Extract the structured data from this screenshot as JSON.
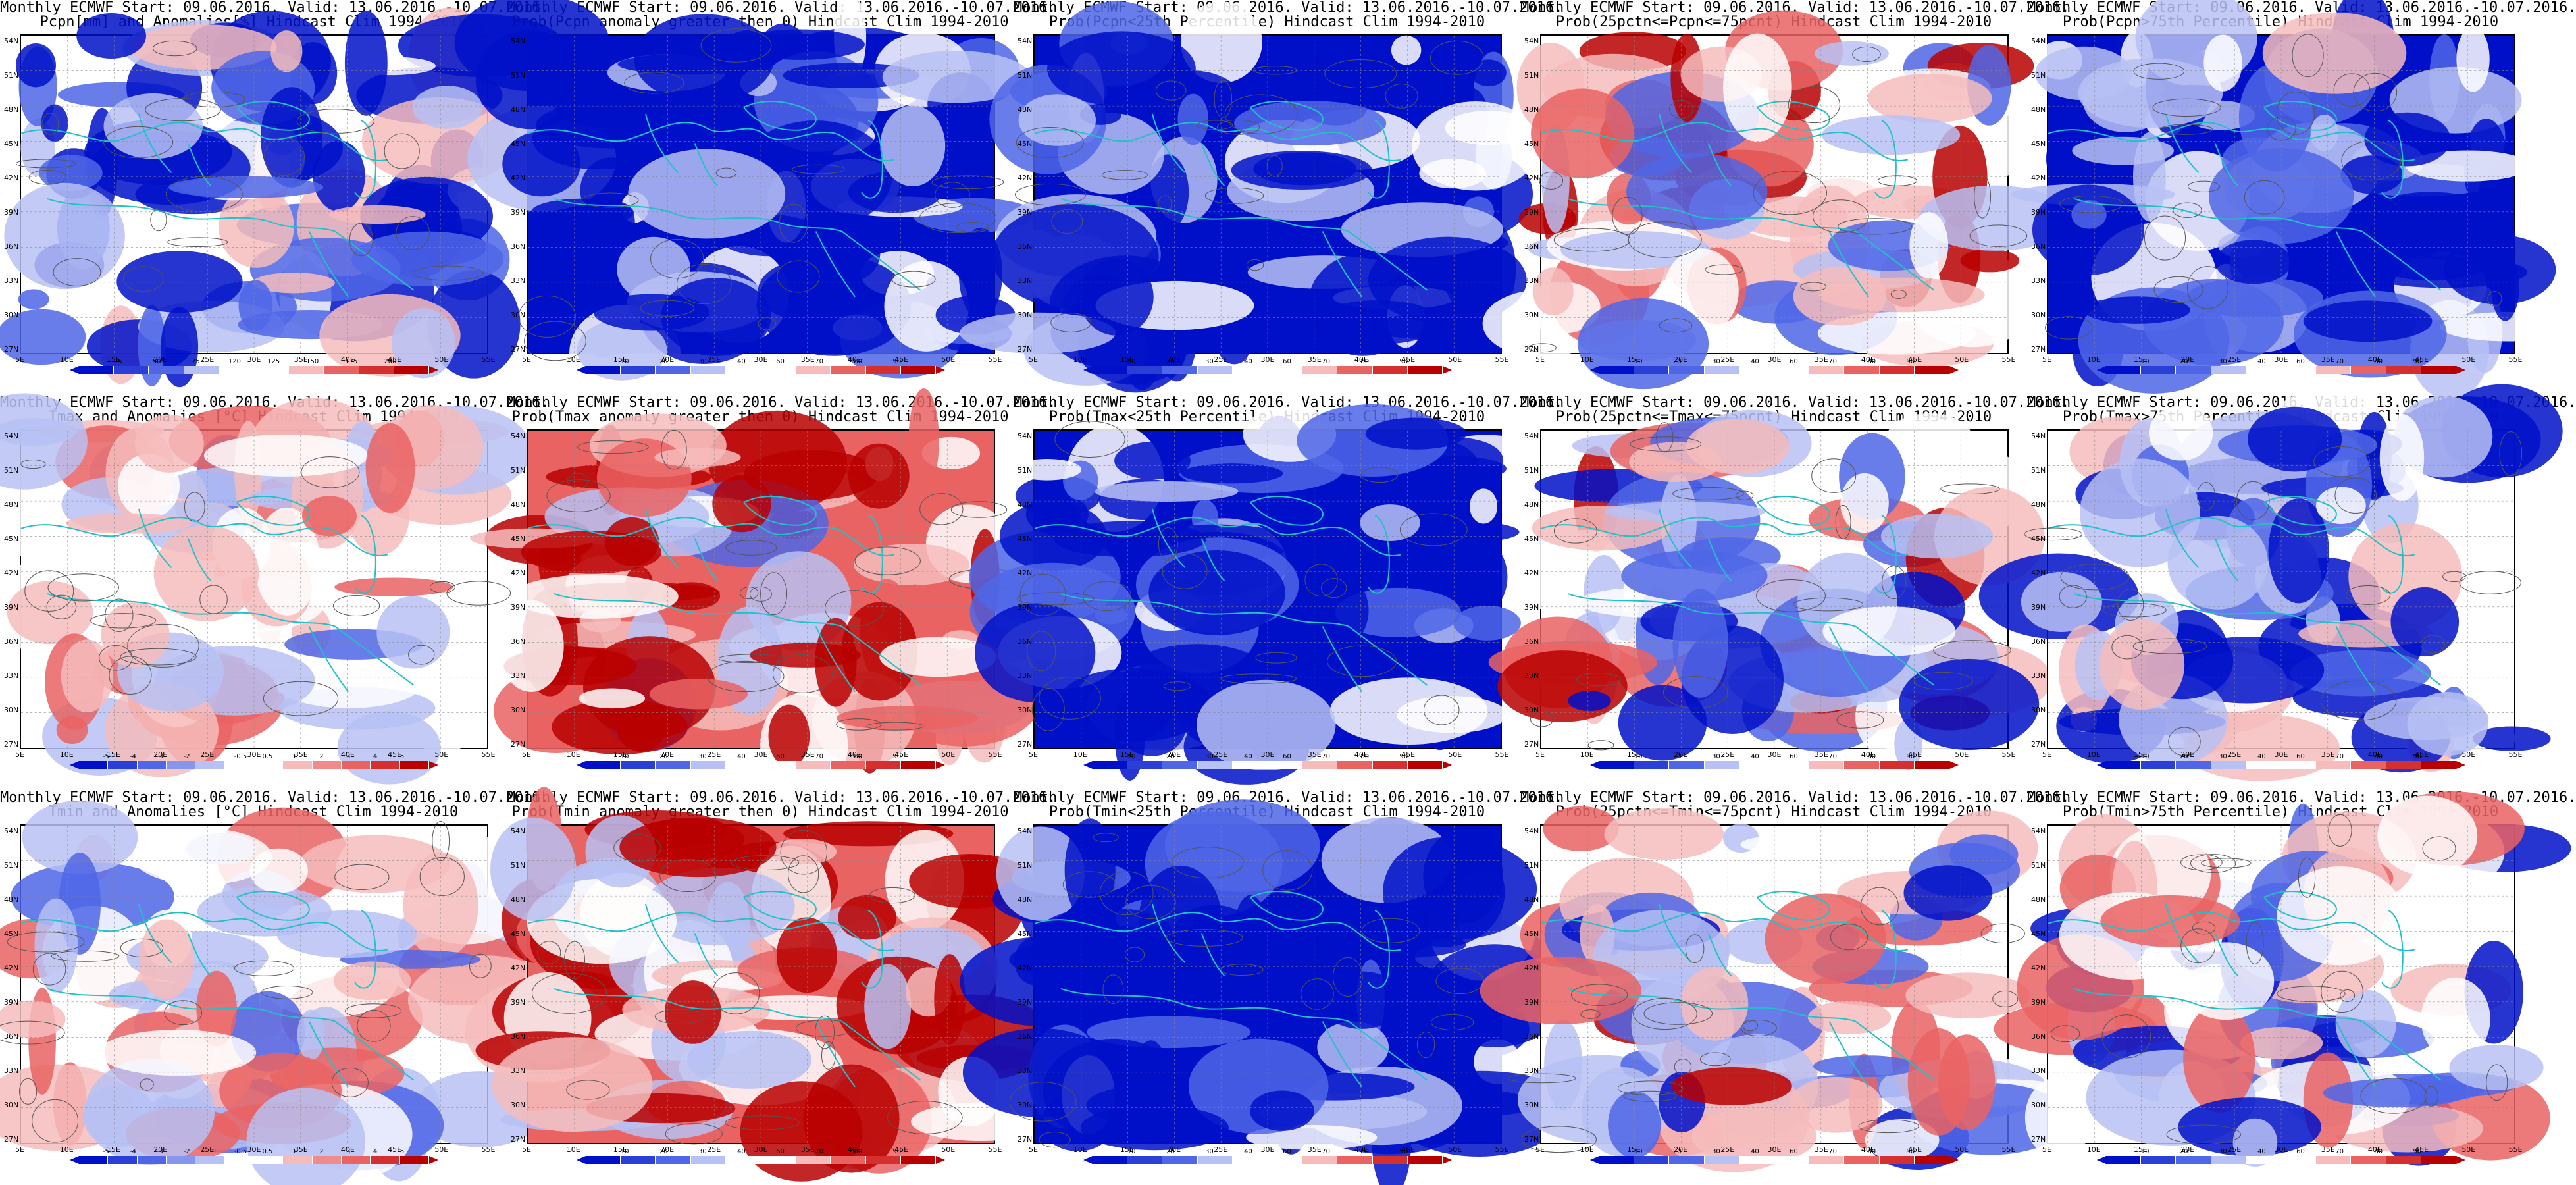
{
  "panels": [
    {
      "id": "p-pcpn-anom",
      "title1": "Monthly ECMWF Start: 09.06.2016. Valid: 13.06.2016.-10.07.2016.",
      "title2": "Pcpn[mm] and Anomalies[%] Hindcast Clim 1994-2010",
      "kind": "anom-pcpn",
      "cbar_labels": [
        "25",
        "50",
        "75",
        "120",
        "125",
        "150",
        "175",
        "200"
      ]
    },
    {
      "id": "p-pcpn-gt0",
      "title1": "Monthly ECMWF Start: 09.06.2016. Valid: 13.06.2016.-10.07.2016.",
      "title2": "Prob(Pcpn anomaly greater then 0) Hindcast Clim 1994-2010",
      "kind": "prob",
      "cbar_labels": [
        "10",
        "20",
        "30",
        "40",
        "60",
        "70",
        "80",
        "90"
      ]
    },
    {
      "id": "p-pcpn-lt25",
      "title1": "Monthly ECMWF Start: 09.06.2016. Valid: 13.06.2016.-10.07.2016.",
      "title2": "Prob(Pcpn<25th Percentile) Hindcast Clim 1994-2010",
      "kind": "prob",
      "cbar_labels": [
        "10",
        "20",
        "30",
        "40",
        "60",
        "70",
        "80",
        "90"
      ]
    },
    {
      "id": "p-pcpn-mid",
      "title1": "Monthly ECMWF Start: 09.06.2016. Valid: 13.06.2016.-10.07.2016.",
      "title2": "Prob(25pctn<=Pcpn<=75pcnt) Hindcast Clim 1994-2010",
      "kind": "prob",
      "cbar_labels": [
        "10",
        "20",
        "30",
        "40",
        "60",
        "70",
        "80",
        "90"
      ]
    },
    {
      "id": "p-pcpn-gt75",
      "title1": "Monthly ECMWF Start: 09.06.2016. Valid: 13.06.2016.-10.07.2016.",
      "title2": "Prob(Pcpn>75th Percentile) Hindcast Clim 1994-2010",
      "kind": "prob",
      "cbar_labels": [
        "10",
        "20",
        "30",
        "40",
        "60",
        "70",
        "80",
        "90"
      ]
    },
    {
      "id": "p-tmax-anom",
      "title1": "Monthly ECMWF Start: 09.06.2016. Valid: 13.06.2016.-10.07.2016.",
      "title2": "Tmax and Anomalies [°C] Hindcast Clim 1994-2010",
      "kind": "anom-temp",
      "cbar_labels": [
        "-5",
        "-4",
        "-3",
        "-2",
        "-1",
        "-0.5",
        "0.5",
        "1",
        "2",
        "3",
        "4",
        "5"
      ]
    },
    {
      "id": "p-tmax-gt0",
      "title1": "Monthly ECMWF Start: 09.06.2016. Valid: 13.06.2016.-10.07.2016.",
      "title2": "Prob(Tmax anomaly greater then 0) Hindcast Clim 1994-2010",
      "kind": "prob",
      "cbar_labels": [
        "10",
        "20",
        "30",
        "40",
        "60",
        "70",
        "80",
        "90"
      ]
    },
    {
      "id": "p-tmax-lt25",
      "title1": "Monthly ECMWF Start: 09.06.2016. Valid: 13.06.2016.-10.07.2016.",
      "title2": "Prob(Tmax<25th Percentile) Hindcast Clim 1994-2010",
      "kind": "prob",
      "cbar_labels": [
        "10",
        "20",
        "30",
        "40",
        "60",
        "70",
        "80",
        "90"
      ]
    },
    {
      "id": "p-tmax-mid",
      "title1": "Monthly ECMWF Start: 09.06.2016. Valid: 13.06.2016.-10.07.2016.",
      "title2": "Prob(25pctn<=Tmax<=75pcnt) Hindcast Clim 1994-2010",
      "kind": "prob",
      "cbar_labels": [
        "10",
        "20",
        "30",
        "40",
        "60",
        "70",
        "80",
        "90"
      ]
    },
    {
      "id": "p-tmax-gt75",
      "title1": "Monthly ECMWF Start: 09.06.2016. Valid: 13.06.2016.-10.07.2016.",
      "title2": "Prob(Tmax>75th Percentile) Hindcast Clim 1994-2010",
      "kind": "prob",
      "cbar_labels": [
        "10",
        "20",
        "30",
        "40",
        "60",
        "70",
        "80",
        "90"
      ]
    },
    {
      "id": "p-tmin-anom",
      "title1": "Monthly ECMWF Start: 09.06.2016. Valid: 13.06.2016.-10.07.2016.",
      "title2": "Tmin and Anomalies [°C] Hindcast Clim 1994-2010",
      "kind": "anom-temp",
      "cbar_labels": [
        "-5",
        "-4",
        "-3",
        "-2",
        "-1",
        "-0.5",
        "0.5",
        "1",
        "2",
        "3",
        "4",
        "5"
      ]
    },
    {
      "id": "p-tmin-gt0",
      "title1": "Monthly ECMWF Start: 09.06.2016. Valid: 13.06.2016.-10.07.2016.",
      "title2": "Prob(Tmin anomaly greater then 0) Hindcast Clim 1994-2010",
      "kind": "prob",
      "cbar_labels": [
        "10",
        "20",
        "30",
        "40",
        "60",
        "70",
        "80",
        "90"
      ]
    },
    {
      "id": "p-tmin-lt25",
      "title1": "Monthly ECMWF Start: 09.06.2016. Valid: 13.06.2016.-10.07.2016.",
      "title2": "Prob(Tmin<25th Percentile) Hindcast Clim 1994-2010",
      "kind": "prob",
      "cbar_labels": [
        "10",
        "20",
        "30",
        "40",
        "60",
        "70",
        "80",
        "90"
      ]
    },
    {
      "id": "p-tmin-mid",
      "title1": "Monthly ECMWF Start: 09.06.2016. Valid: 13.06.2016.-10.07.2016.",
      "title2": "Prob(25pctn<=Tmin<=75pcnt) Hindcast Clim 1994-2010",
      "kind": "prob",
      "cbar_labels": [
        "10",
        "20",
        "30",
        "40",
        "60",
        "70",
        "80",
        "90"
      ]
    },
    {
      "id": "p-tmin-gt75",
      "title1": "Monthly ECMWF Start: 09.06.2016. Valid: 13.06.2016.-10.07.2016.",
      "title2": "Prob(Tmin>75th Percentile) Hindcast Clim 1994-2010",
      "kind": "prob",
      "cbar_labels": [
        "10",
        "20",
        "30",
        "40",
        "60",
        "70",
        "80",
        "90"
      ]
    }
  ],
  "lat_labels": [
    "54N",
    "51N",
    "48N",
    "45N",
    "42N",
    "39N",
    "36N",
    "33N",
    "30N",
    "27N"
  ],
  "lon_labels": [
    "5E",
    "10E",
    "15E",
    "20E",
    "25E",
    "30E",
    "35E",
    "40E",
    "45E",
    "50E",
    "55E"
  ],
  "colors": {
    "deep_blue": "#0010c8",
    "mid_blue": "#4f66e6",
    "light_blue": "#b7c1f3",
    "white": "#ffffff",
    "light_red": "#f6bcbc",
    "mid_red": "#ea6363",
    "deep_red": "#b80000",
    "coast": "#22c1c7",
    "contour": "#555555"
  }
}
